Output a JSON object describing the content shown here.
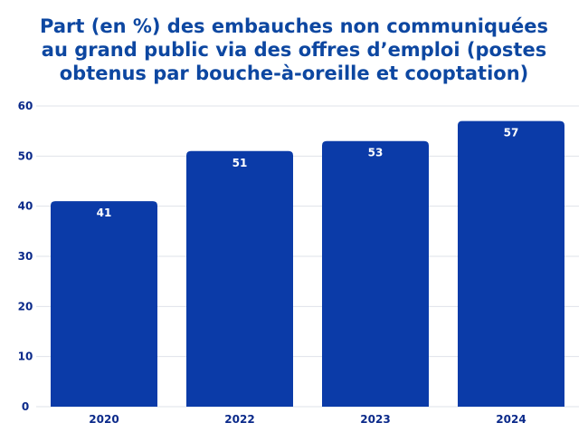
{
  "chart_data": {
    "type": "bar",
    "title_lines": [
      "Part (en %) des embauches non communiquées",
      "au grand public via des offres d’emploi (postes",
      "obtenus par bouche-à-oreille et cooptation)"
    ],
    "categories": [
      "2020",
      "2022",
      "2023",
      "2024"
    ],
    "values": [
      41,
      51,
      53,
      57
    ],
    "data_labels": [
      "41",
      "51",
      "53",
      "57"
    ],
    "y_ticks": [
      "0",
      "10",
      "20",
      "30",
      "40",
      "50",
      "60"
    ],
    "ylim": [
      0,
      60
    ],
    "xlabel": "",
    "ylabel": "",
    "grid": true,
    "legend": "none",
    "colors": {
      "bar": "#0b3ba8",
      "title": "#0d47a1",
      "axis_text": "#0b2a8a",
      "grid": "#dfe3ea",
      "data_label": "#ffffff"
    }
  }
}
